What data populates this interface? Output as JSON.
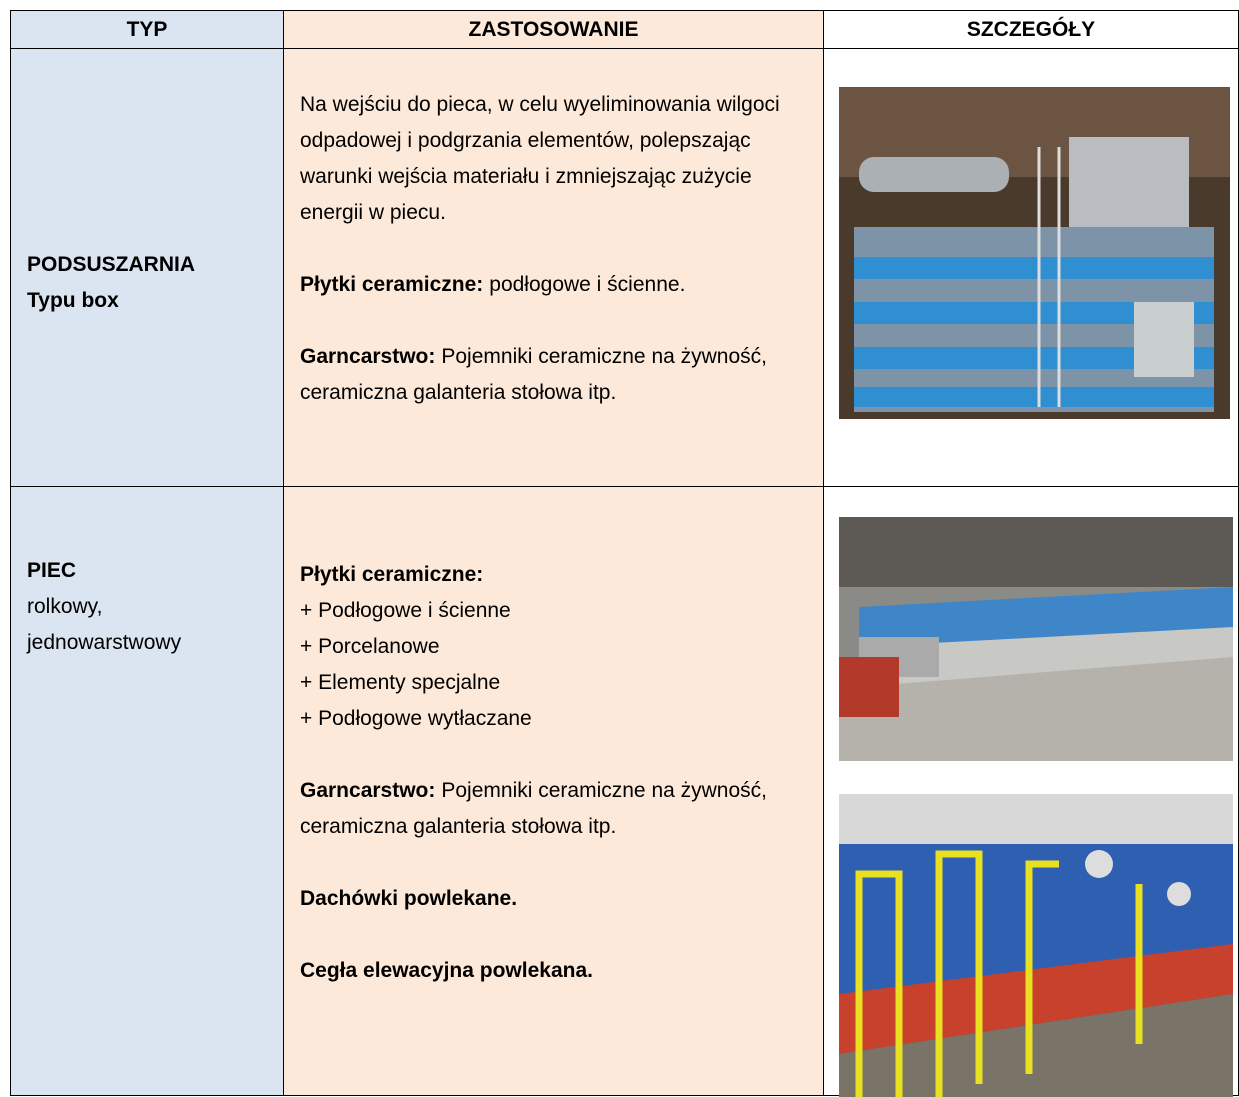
{
  "table": {
    "header": [
      "TYP",
      "ZASTOSOWANIE",
      "SZCZEGÓŁY"
    ],
    "rows": [
      {
        "type": {
          "title": "PODSUSZARNIA",
          "subtitle": "Typu box"
        },
        "paragraphs": [
          {
            "text": "Na wejściu do pieca, w celu wyeliminowania wilgoci odpadowej i podgrzania elementów, polepszając warunki wejścia materiału i zmniejszając zużycie energii w piecu."
          },
          {
            "label": "Płytki ceramiczne:",
            "text": "podłogowe i ścienne."
          },
          {
            "label": "Garncarstwo:",
            "text": "Pojemniki ceramiczne na żywność, ceramiczna galanteria stołowa itp."
          }
        ]
      },
      {
        "type": {
          "title": "PIEC",
          "subtitle": "rolkowy, jednowarstwowy"
        },
        "paragraphs": [
          {
            "label": "Płytki ceramiczne:",
            "items": [
              "+ Podłogowe i ścienne",
              "+ Porcelanowe",
              "+ Elementy specjalne",
              "+ Podłogowe wytłaczane"
            ]
          },
          {
            "label": "Garncarstwo:",
            "text": "Pojemniki ceramiczne na żywność, ceramiczna galanteria stołowa itp."
          },
          {
            "label": "Dachówki powlekane."
          },
          {
            "label": "Cegła elewacyjna powlekana."
          }
        ]
      }
    ]
  }
}
